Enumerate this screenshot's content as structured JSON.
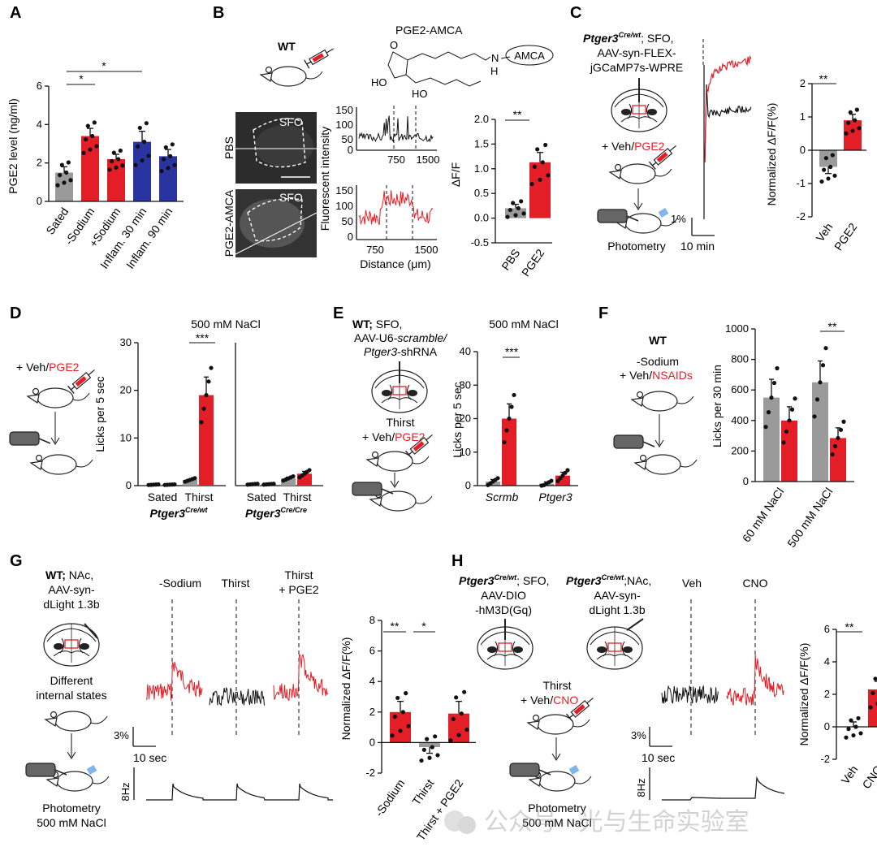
{
  "panels": {
    "A": {
      "letter": "A",
      "ylabel": "PGE2 level (ng/ml)",
      "sig1": "*",
      "sig2": "*"
    },
    "B": {
      "letter": "B",
      "wt": "WT",
      "compound": "PGE2-AMCA",
      "amca": "AMCA",
      "n_label": "N",
      "h_label": "H",
      "o_label": "O",
      "ho1": "HO",
      "ho2": "HO",
      "img_top_row": "PBS",
      "img_bottom_row": "PGE2-AMCA",
      "sfo1": "SFO",
      "sfo2": "SFO",
      "ylabel_trace": "Fluorescent intensity",
      "xlabel_trace": "Distance (μm)",
      "top_yticks": [
        "150",
        "100",
        "50",
        "0"
      ],
      "bot_yticks": [
        "150",
        "100",
        "50",
        "0"
      ],
      "top_xticks": [
        "750",
        "1500"
      ],
      "bot_xticks": [
        "750",
        "1500"
      ],
      "bar_ylabel": "ΔF/F",
      "sig": "**"
    },
    "C": {
      "letter": "C",
      "genotype": "Ptger3",
      "genotype_sup": "Cre/wt",
      "line1_rest": "; SFO,",
      "line2": "AAV-syn-FLEX-",
      "line3": "jGCaMP7s-WPRE",
      "treat_prefix": "+ Veh/",
      "treat_red": "PGE2",
      "photometry": "Photometry",
      "scale_y": "1%",
      "scale_x": "10 min",
      "ylabel": "Normalized ΔF/F(%)",
      "sig": "**"
    },
    "D": {
      "letter": "D",
      "treat_prefix": "+ Veh/",
      "treat_red": "PGE2",
      "title": "500 mM NaCl",
      "ylabel": "Licks  per 5 sec",
      "sig": "***",
      "geno1": "Ptger3",
      "geno1_sup": "Cre/wt",
      "geno2": "Ptger3",
      "geno2_sup": "Cre/Cre",
      "xcat": [
        "Sated",
        "Thirst",
        "Sated",
        "Thirst"
      ]
    },
    "E": {
      "letter": "E",
      "line1_bold": "WT;",
      "line1_rest": " SFO,",
      "line2_a": "AAV-U6-",
      "line2_b": "scramble/",
      "line3_a": "Ptger3",
      "line3_b": "-shRNA",
      "thirst": "Thirst",
      "treat_prefix": "+ Veh/",
      "treat_red": "PGE2",
      "title": "500 mM NaCl",
      "ylabel": "Licks per 5 sec",
      "sig": "***"
    },
    "F": {
      "letter": "F",
      "wt": "WT",
      "line1": "-Sodium",
      "treat_prefix": "+ Veh/",
      "treat_red": "NSAIDs",
      "ylabel": "Licks per 30 min",
      "sig": "**"
    },
    "G": {
      "letter": "G",
      "line1_bold": "WT;",
      "line1_rest": " NAc,",
      "line2": "AAV-syn-",
      "line3": "dLight 1.3b",
      "states1": "Different",
      "states2": "internal states",
      "photometry": "Photometry",
      "nacl": "500 mM NaCl",
      "cond1": "-Sodium",
      "cond2": "Thirst",
      "cond3a": "Thirst",
      "cond3b": "+ PGE2",
      "scale_y": "3%",
      "scale_x": "10 sec",
      "scale_hz": "8Hz",
      "ylabel": "Normalized ΔF/F(%)",
      "sig1": "**",
      "sig2": "*"
    },
    "H": {
      "letter": "H",
      "geno": "Ptger3",
      "geno_sup": "Cre/wt",
      "l1_rest": "; SFO,",
      "l2": "AAV-DIO",
      "l3": "-hM3D(Gq)",
      "r1_rest": ";NAc,",
      "r2": "AAV-syn-",
      "r3": "dLight 1.3b",
      "thirst": "Thirst",
      "treat_prefix": "+ Veh/",
      "treat_red": "CNO",
      "photometry": "Photometry",
      "nacl": "500 mM NaCl",
      "cond1": "Veh",
      "cond2": "CNO",
      "scale_y": "3%",
      "scale_x": "10 sec",
      "scale_hz": "8Hz",
      "ylabel": "Normalized ΔF/F(%)",
      "sig": "**"
    }
  },
  "watermark": "公众号 · 光与生命实验室",
  "colors": {
    "red": "#e41e26",
    "grey": "#9a9a9a",
    "blue": "#2934a0",
    "black": "#111111"
  },
  "chart_data": [
    {
      "id": "A",
      "type": "bar",
      "categories": [
        "Sated",
        "-Sodium",
        "+Sodium",
        "Inflam. 30 min",
        "Inflam. 90 min"
      ],
      "values": [
        1.5,
        3.4,
        2.2,
        3.1,
        2.35
      ],
      "sem": [
        0.3,
        0.4,
        0.25,
        0.55,
        0.35
      ],
      "colors": [
        "#9a9a9a",
        "#e41e26",
        "#e41e26",
        "#2934a0",
        "#2934a0"
      ],
      "ylim": [
        0,
        6
      ],
      "yticks": [
        0,
        2,
        4,
        6
      ]
    },
    {
      "id": "B",
      "type": "bar",
      "categories": [
        "PBS",
        "PGE2"
      ],
      "values": [
        0.2,
        1.13
      ],
      "sem": [
        0.08,
        0.2
      ],
      "colors": [
        "#9a9a9a",
        "#e41e26"
      ],
      "ylim": [
        -0.5,
        2.0
      ],
      "yticks": [
        -0.5,
        0.0,
        0.5,
        1.0,
        1.5,
        2.0
      ],
      "ytick_labels": [
        "-0.5",
        "0.0",
        "0.5",
        "1.0",
        "1.5",
        "2.0"
      ]
    },
    {
      "id": "C",
      "type": "bar",
      "categories": [
        "Veh",
        "PGE2"
      ],
      "values": [
        -0.5,
        0.9
      ],
      "sem": [
        0.2,
        0.18
      ],
      "colors": [
        "#9a9a9a",
        "#e41e26"
      ],
      "ylim": [
        -2,
        2
      ],
      "yticks": [
        -2,
        -1,
        0,
        1,
        2
      ]
    },
    {
      "id": "D",
      "type": "bar",
      "groups": [
        "Ptger3 Cre/wt",
        "Ptger3 Cre/Cre"
      ],
      "categories": [
        "Sated",
        "Thirst",
        "Sated",
        "Thirst"
      ],
      "series": [
        {
          "name": "Veh",
          "values": [
            0.2,
            1.2,
            0.3,
            1.5
          ]
        },
        {
          "name": "PGE2",
          "values": [
            0.2,
            19,
            0.3,
            2.5
          ]
        }
      ],
      "ylim": [
        0,
        30
      ],
      "yticks": [
        0,
        10,
        20,
        30
      ]
    },
    {
      "id": "E",
      "type": "bar",
      "categories": [
        "Scrmb",
        "Ptger3"
      ],
      "series": [
        {
          "name": "Veh",
          "values": [
            1.2,
            0.6
          ]
        },
        {
          "name": "PGE2",
          "values": [
            20,
            3
          ]
        }
      ],
      "ylim": [
        0,
        40
      ],
      "yticks": [
        0,
        10,
        20,
        30,
        40
      ]
    },
    {
      "id": "F",
      "type": "bar",
      "categories": [
        "60 mM NaCl",
        "500 mM NaCl"
      ],
      "series": [
        {
          "name": "Veh",
          "values": [
            550,
            650
          ]
        },
        {
          "name": "NSAIDs",
          "values": [
            400,
            285
          ]
        }
      ],
      "ylim": [
        0,
        1000
      ],
      "yticks": [
        0,
        200,
        400,
        600,
        800,
        1000
      ]
    },
    {
      "id": "G",
      "type": "bar",
      "categories": [
        "-Sodium",
        "Thirst",
        "Thirst + PGE2"
      ],
      "values": [
        2.0,
        -0.3,
        1.9
      ],
      "sem": [
        0.7,
        0.4,
        0.8
      ],
      "colors": [
        "#e41e26",
        "#9a9a9a",
        "#e41e26"
      ],
      "ylim": [
        -2,
        8
      ],
      "yticks": [
        -2,
        0,
        2,
        4,
        6,
        8
      ]
    },
    {
      "id": "H",
      "type": "bar",
      "categories": [
        "Veh",
        "CNO"
      ],
      "values": [
        0.0,
        2.3
      ],
      "sem": [
        0.3,
        0.5
      ],
      "colors": [
        "#9a9a9a",
        "#e41e26"
      ],
      "ylim": [
        -2,
        6
      ],
      "yticks": [
        -2,
        0,
        2,
        4,
        6
      ]
    }
  ]
}
